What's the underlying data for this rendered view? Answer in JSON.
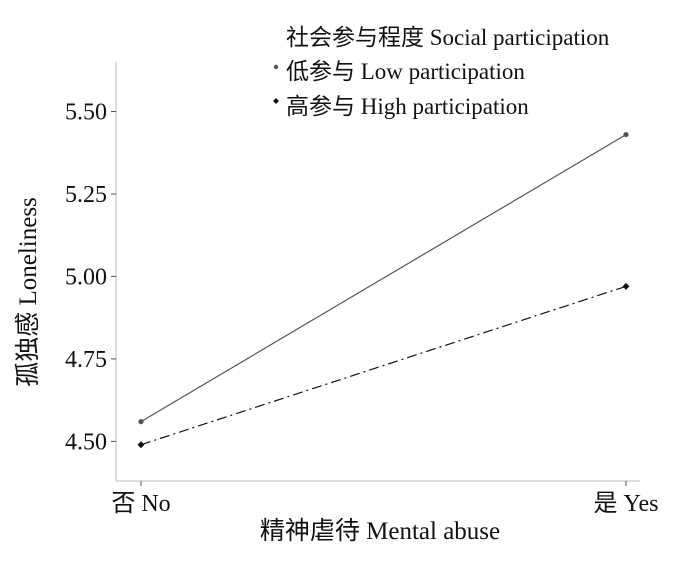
{
  "chart_data": {
    "type": "line",
    "title": "",
    "xlabel": "精神虐待 Mental abuse",
    "ylabel": "孤独感 Loneliness",
    "categories": [
      "否 No",
      "是 Yes"
    ],
    "ylim": [
      4.38,
      5.65
    ],
    "yticks": [
      "4.50",
      "4.75",
      "5.00",
      "5.25",
      "5.50"
    ],
    "legend": {
      "title": "社会参与程度 Social participation",
      "position": "top-right"
    },
    "series": [
      {
        "name": "低参与 Low participation",
        "values": [
          4.56,
          5.43
        ],
        "color": "#555555",
        "line_style": "solid",
        "marker": "circle"
      },
      {
        "name": "高参与 High participation",
        "values": [
          4.49,
          4.97
        ],
        "color": "#111111",
        "line_style": "dash-dot",
        "marker": "diamond"
      }
    ],
    "grid": false
  }
}
